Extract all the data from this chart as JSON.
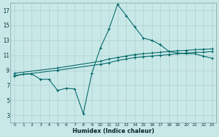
{
  "xlabel": "Humidex (Indice chaleur)",
  "bg_color": "#c8e8e8",
  "grid_color": "#b0cccc",
  "line_color": "#006666",
  "xlim": [
    -0.5,
    23.5
  ],
  "ylim": [
    2,
    18
  ],
  "xtick_vals": [
    0,
    1,
    2,
    3,
    4,
    5,
    6,
    7,
    8,
    9,
    10,
    11,
    12,
    13,
    14,
    15,
    16,
    17,
    18,
    19,
    20,
    21,
    22,
    23
  ],
  "ytick_vals": [
    3,
    5,
    7,
    9,
    11,
    13,
    15,
    17
  ],
  "series1_x": [
    0,
    1,
    2,
    3,
    4,
    5,
    6,
    7,
    8,
    9,
    10,
    11,
    12,
    13,
    14,
    15,
    16,
    17,
    18,
    19,
    20,
    21,
    22,
    23
  ],
  "series1_y": [
    8.2,
    8.5,
    8.5,
    7.8,
    7.8,
    6.3,
    6.6,
    6.5,
    3.2,
    8.6,
    12.0,
    14.5,
    17.8,
    16.3,
    14.8,
    13.3,
    13.0,
    12.4,
    11.5,
    11.3,
    11.2,
    11.2,
    10.9,
    10.6
  ],
  "series2_x": [
    0,
    5,
    10,
    11,
    12,
    13,
    14,
    15,
    16,
    17,
    18,
    19,
    20,
    21,
    22,
    23
  ],
  "series2_y": [
    8.3,
    9.0,
    9.8,
    10.0,
    10.3,
    10.5,
    10.7,
    10.8,
    10.9,
    11.0,
    11.1,
    11.2,
    11.3,
    11.4,
    11.4,
    11.5
  ],
  "series3_x": [
    0,
    5,
    10,
    11,
    12,
    13,
    14,
    15,
    16,
    17,
    18,
    19,
    20,
    21,
    22,
    23
  ],
  "series3_y": [
    8.6,
    9.3,
    10.2,
    10.5,
    10.7,
    10.9,
    11.1,
    11.2,
    11.3,
    11.4,
    11.5,
    11.6,
    11.65,
    11.75,
    11.8,
    11.85
  ]
}
